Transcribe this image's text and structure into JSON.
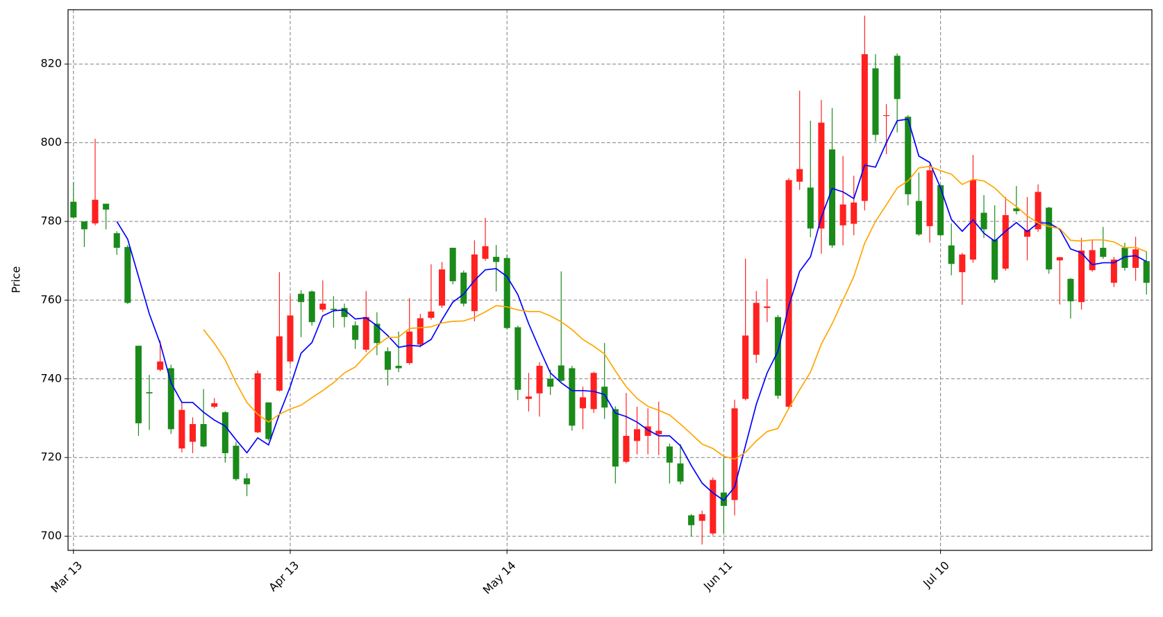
{
  "chart_data": {
    "type": "candlestick",
    "y_label": "Price",
    "up_color": "#ff2020",
    "down_color": "#1a8a1a",
    "grid": true,
    "ylim": [
      696.4,
      833.8
    ],
    "yticks": [
      700,
      720,
      740,
      760,
      780,
      800,
      820
    ],
    "categories": [
      "Mar 13",
      null,
      null,
      null,
      null,
      null,
      null,
      null,
      null,
      null,
      null,
      null,
      null,
      null,
      null,
      null,
      null,
      null,
      null,
      null,
      "Apr 13",
      null,
      null,
      null,
      null,
      null,
      null,
      null,
      null,
      null,
      null,
      null,
      null,
      null,
      null,
      null,
      null,
      null,
      null,
      null,
      "May 14",
      null,
      null,
      null,
      null,
      null,
      null,
      null,
      null,
      null,
      null,
      null,
      null,
      null,
      null,
      null,
      null,
      null,
      null,
      null,
      "Jun 11",
      null,
      null,
      null,
      null,
      null,
      null,
      null,
      null,
      null,
      null,
      null,
      null,
      null,
      null,
      null,
      null,
      null,
      null,
      null,
      "Jul 10",
      null,
      null,
      null,
      null,
      null,
      null,
      null,
      null,
      null,
      null,
      null,
      null,
      null,
      null,
      null,
      null,
      null,
      null,
      null
    ],
    "open": [
      785,
      780,
      779.5,
      784.5,
      777,
      773.5,
      748.4,
      736.6,
      742.3,
      742.7,
      722.3,
      724,
      728.5,
      732.9,
      731.5,
      723,
      714.7,
      726.4,
      734,
      737,
      744.4,
      761.6,
      762.2,
      757.6,
      757.8,
      758,
      753.6,
      747.4,
      754,
      747,
      743.3,
      744,
      748.7,
      755.5,
      758.6,
      773.3,
      767,
      757.2,
      770.5,
      771,
      770.7,
      753.1,
      734.9,
      736.3,
      740,
      743.4,
      742.7,
      732.5,
      732.3,
      738,
      732.3,
      718.9,
      724.2,
      725.5,
      725.9,
      722.8,
      718.5,
      705.3,
      703.9,
      700.7,
      711.1,
      709.2,
      734.9,
      746.1,
      758,
      755.7,
      732.9,
      790.1,
      788.6,
      778.2,
      798.3,
      779,
      779.4,
      785.2,
      818.9,
      806.8,
      822.1,
      806.6,
      785.2,
      778.8,
      789.2,
      773.9,
      767.1,
      770.3,
      782.2,
      775.4,
      768,
      783.3,
      776.1,
      778,
      783.5,
      770.1,
      765.4,
      759.5,
      767.6,
      773.3,
      764.4,
      773.3,
      768.2,
      769.9
    ],
    "high": [
      790,
      780,
      801,
      784.5,
      777.5,
      774,
      748.4,
      741,
      749.7,
      743.6,
      734.2,
      730.2,
      737.4,
      735.1,
      731.8,
      724,
      716,
      742.1,
      734,
      767.1,
      761.2,
      762.5,
      762.5,
      765,
      761,
      759.1,
      754.6,
      762.3,
      756.9,
      748,
      752,
      760.5,
      756.5,
      769.1,
      769.7,
      773.3,
      767.5,
      775.2,
      780.9,
      774,
      771.5,
      753.5,
      741.5,
      744.2,
      742.3,
      767.3,
      743.3,
      738,
      741.8,
      749.1,
      733,
      736.4,
      732.9,
      732.5,
      734.2,
      723.5,
      723.4,
      705.6,
      706.5,
      714.9,
      720,
      734.7,
      770.5,
      762.3,
      765.4,
      756.2,
      791,
      813.2,
      805.6,
      810.9,
      808.8,
      796.6,
      791.6,
      832.3,
      822.5,
      809.8,
      822.7,
      807,
      792.4,
      794.5,
      789.2,
      779.5,
      772,
      796.9,
      786.7,
      784.1,
      786.2,
      789,
      786.2,
      789.4,
      783.7,
      771,
      765.6,
      775.8,
      775.2,
      778.6,
      771,
      774.6,
      776.1,
      772.4
    ],
    "low": [
      780.8,
      773.5,
      779,
      778,
      771.5,
      759,
      725.5,
      727,
      741.9,
      726,
      721.3,
      721.1,
      722.6,
      732.5,
      718.7,
      714.1,
      710.2,
      726.2,
      724.3,
      736.8,
      743.6,
      750.6,
      753.5,
      757,
      753,
      753.1,
      747.6,
      746.8,
      746,
      738.3,
      741.7,
      743.6,
      748,
      755,
      758,
      764,
      758.4,
      754.6,
      770,
      762.2,
      752.5,
      734.6,
      731.7,
      730.4,
      735.9,
      739.3,
      726.8,
      727.2,
      731.3,
      729.8,
      713.4,
      718.5,
      720.8,
      720.8,
      720.6,
      713.4,
      713.2,
      700,
      697.9,
      700.2,
      700.8,
      705.3,
      734.5,
      744,
      754.4,
      734.9,
      732.5,
      788,
      776,
      771.8,
      773.3,
      773.9,
      776.5,
      782.8,
      800.3,
      797.1,
      802.6,
      784.1,
      776.3,
      774.6,
      776.1,
      766.3,
      758.8,
      769.5,
      775.8,
      764.4,
      767.5,
      781.8,
      770.1,
      777.3,
      766.7,
      758.9,
      755.3,
      757.6,
      767.2,
      770.5,
      763.3,
      767.5,
      764.9,
      761.4
    ],
    "close": [
      781,
      778,
      785.5,
      783,
      773.3,
      759.3,
      728.7,
      736.3,
      744.4,
      727.2,
      732.1,
      728.5,
      722.8,
      733.8,
      721.1,
      714.5,
      713.2,
      741.4,
      724.7,
      750.8,
      756.1,
      759.5,
      754.4,
      759.1,
      757.5,
      755.7,
      749.9,
      755.7,
      749.1,
      742.3,
      742.7,
      752,
      755.4,
      757.1,
      767.8,
      764.8,
      759.1,
      771.6,
      773.7,
      769.7,
      752.9,
      737.2,
      735.5,
      743.3,
      738,
      739.5,
      728.1,
      735.3,
      741.5,
      732.7,
      717.7,
      725.5,
      727.2,
      727.9,
      726.8,
      718.7,
      713.9,
      702.8,
      705.6,
      714.3,
      707.7,
      732.5,
      751,
      759.3,
      758.4,
      735.7,
      790.5,
      793.3,
      778.2,
      805.1,
      773.9,
      784.3,
      784.8,
      822.5,
      802,
      807,
      811.1,
      786.9,
      776.7,
      793,
      776.5,
      769.2,
      771.6,
      790.5,
      778,
      765.2,
      781.6,
      782.6,
      777.8,
      787.5,
      767.8,
      770.9,
      759.7,
      772.6,
      772.7,
      771,
      770.3,
      768.2,
      772.9,
      764.4
    ],
    "lines": [
      {
        "color": "#0000ff",
        "values": [
          null,
          null,
          null,
          null,
          780,
          775.5,
          766,
          756.5,
          749,
          739,
          734,
          734,
          731.5,
          729.5,
          728,
          724.5,
          721.2,
          725,
          723.2,
          731,
          738,
          746.5,
          749.2,
          756,
          757.3,
          757.5,
          755.2,
          755.5,
          753.5,
          751,
          748,
          748.5,
          748.3,
          750,
          755,
          759.5,
          761.5,
          765,
          767.7,
          768,
          766,
          761.4,
          754,
          747.6,
          741.5,
          739,
          737,
          737,
          736.8,
          736,
          731.3,
          730.4,
          729,
          727,
          725.5,
          725.5,
          723,
          718,
          713.5,
          711,
          709.1,
          712.5,
          723,
          733.5,
          741.5,
          747,
          758.5,
          767.3,
          771,
          781,
          788.4,
          787.5,
          785.8,
          794.3,
          793.8,
          800,
          805.6,
          806,
          796.6,
          795,
          788.5,
          780.5,
          777.5,
          780.4,
          777,
          775,
          777.5,
          779.7,
          777.4,
          779.6,
          779.6,
          778,
          773,
          772,
          769,
          769.5,
          769.5,
          771,
          771.3,
          769.8
        ]
      },
      {
        "color": "#ffa500",
        "values": [
          null,
          null,
          null,
          null,
          null,
          null,
          null,
          null,
          null,
          null,
          null,
          null,
          752.5,
          749,
          744.8,
          739,
          734,
          731,
          729,
          731,
          732.3,
          733.3,
          735.2,
          737,
          739,
          741.5,
          743,
          746,
          748.5,
          750.5,
          750.6,
          752.8,
          753,
          753.2,
          754.2,
          754.6,
          754.7,
          755.6,
          757,
          758.6,
          758.3,
          757.5,
          757.1,
          757.1,
          756,
          754.5,
          752.5,
          750,
          748.3,
          746.3,
          742,
          738,
          735,
          733,
          732,
          730.8,
          728.5,
          726,
          723.4,
          722.3,
          720.3,
          719.6,
          721.3,
          724.2,
          726.6,
          727.4,
          732.5,
          737.2,
          741.7,
          748.8,
          754,
          760,
          766,
          774.5,
          780,
          784.2,
          788.5,
          790.3,
          793.6,
          794,
          792.9,
          792,
          789.4,
          790.7,
          790.3,
          788.5,
          785.8,
          783.8,
          781.4,
          779.6,
          778.7,
          778.2,
          775.2,
          775,
          775.3,
          775.3,
          774.8,
          773.3,
          773.4,
          772.3
        ]
      }
    ]
  }
}
